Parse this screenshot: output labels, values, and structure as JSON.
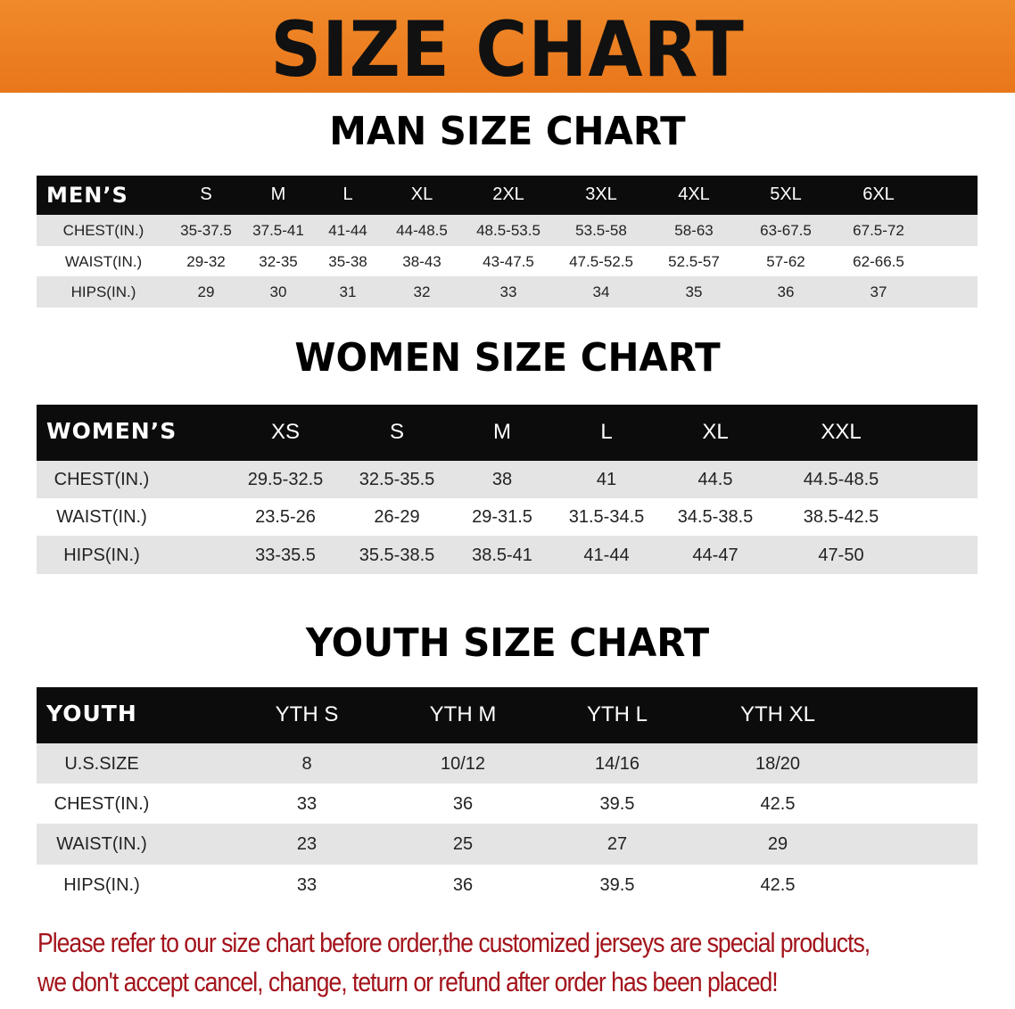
{
  "banner": {
    "title": "SIZE CHART",
    "color": "#ec801f"
  },
  "men": {
    "title": "MAN SIZE CHART",
    "header_label": "MEN’S",
    "sizes": [
      "S",
      "M",
      "L",
      "XL",
      "2XL",
      "3XL",
      "4XL",
      "5XL",
      "6XL"
    ],
    "rows": [
      {
        "label": "CHEST(IN.)",
        "values": [
          "35-37.5",
          "37.5-41",
          "41-44",
          "44-48.5",
          "48.5-53.5",
          "53.5-58",
          "58-63",
          "63-67.5",
          "67.5-72"
        ]
      },
      {
        "label": "WAIST(IN.)",
        "values": [
          "29-32",
          "32-35",
          "35-38",
          "38-43",
          "43-47.5",
          "47.5-52.5",
          "52.5-57",
          "57-62",
          "62-66.5"
        ]
      },
      {
        "label": "HIPS(IN.)",
        "values": [
          "29",
          "30",
          "31",
          "32",
          "33",
          "34",
          "35",
          "36",
          "37"
        ]
      }
    ]
  },
  "women": {
    "title": "WOMEN SIZE CHART",
    "header_label": "WOMEN’S",
    "sizes": [
      "XS",
      "S",
      "M",
      "L",
      "XL",
      "XXL"
    ],
    "rows": [
      {
        "label": "CHEST(IN.)",
        "values": [
          "29.5-32.5",
          "32.5-35.5",
          "38",
          "41",
          "44.5",
          "44.5-48.5"
        ]
      },
      {
        "label": "WAIST(IN.)",
        "values": [
          "23.5-26",
          "26-29",
          "29-31.5",
          "31.5-34.5",
          "34.5-38.5",
          "38.5-42.5"
        ]
      },
      {
        "label": "HIPS(IN.)",
        "values": [
          "33-35.5",
          "35.5-38.5",
          "38.5-41",
          "41-44",
          "44-47",
          "47-50"
        ]
      }
    ]
  },
  "youth": {
    "title": "YOUTH SIZE CHART",
    "header_label": "YOUTH",
    "sizes": [
      "YTH S",
      "YTH M",
      "YTH L",
      "YTH XL"
    ],
    "rows": [
      {
        "label": "U.S.SIZE",
        "values": [
          "8",
          "10/12",
          "14/16",
          "18/20"
        ]
      },
      {
        "label": "CHEST(IN.)",
        "values": [
          "33",
          "36",
          "39.5",
          "42.5"
        ]
      },
      {
        "label": "WAIST(IN.)",
        "values": [
          "23",
          "25",
          "27",
          "29"
        ]
      },
      {
        "label": "HIPS(IN.)",
        "values": [
          "33",
          "36",
          "39.5",
          "42.5"
        ]
      }
    ]
  },
  "notice": {
    "line1": "Please refer to our size chart before order,the customized jerseys are special products,",
    "line2": "we don't accept cancel, change, teturn or refund after order has been placed!",
    "color": "#a3141c"
  }
}
